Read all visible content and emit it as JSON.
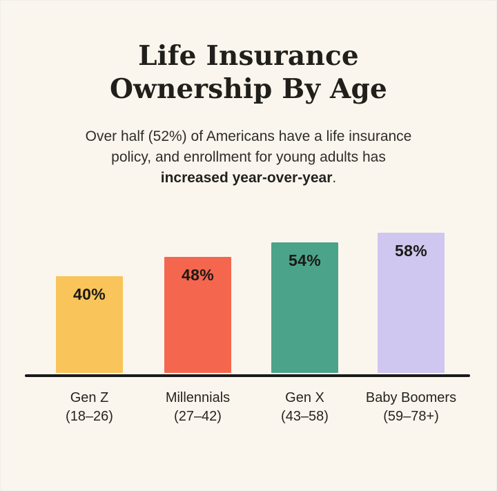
{
  "title": {
    "line1": "Life Insurance",
    "line2": "Ownership By Age"
  },
  "subtitle": {
    "line1": "Over half (52%) of Americans have a life insurance",
    "line2": "policy, and enrollment for young adults has",
    "bold": "increased year-over-year",
    "suffix": "."
  },
  "chart_data": {
    "type": "bar",
    "title": "Life Insurance Ownership By Age",
    "categories": [
      "Gen Z",
      "Millennials",
      "Gen X",
      "Baby Boomers"
    ],
    "category_sublabels": [
      "(18–26)",
      "(27–42)",
      "(43–58)",
      "(59–78+)"
    ],
    "values": [
      40,
      48,
      54,
      58
    ],
    "value_labels": [
      "40%",
      "48%",
      "54%",
      "58%"
    ],
    "bar_colors": [
      "#F9C45A",
      "#F5664E",
      "#4BA389",
      "#CFC7F0"
    ],
    "xlabel": "",
    "ylabel": "",
    "ylim": [
      0,
      60
    ],
    "grid": false,
    "legend": false,
    "value_label_position": "inside-top",
    "axis_line_color": "#1A1A1A"
  },
  "colors": {
    "background": "#FBF6ED",
    "title_text": "#211F1B",
    "body_text": "#2E2C29",
    "value_text": "#1B1916"
  }
}
